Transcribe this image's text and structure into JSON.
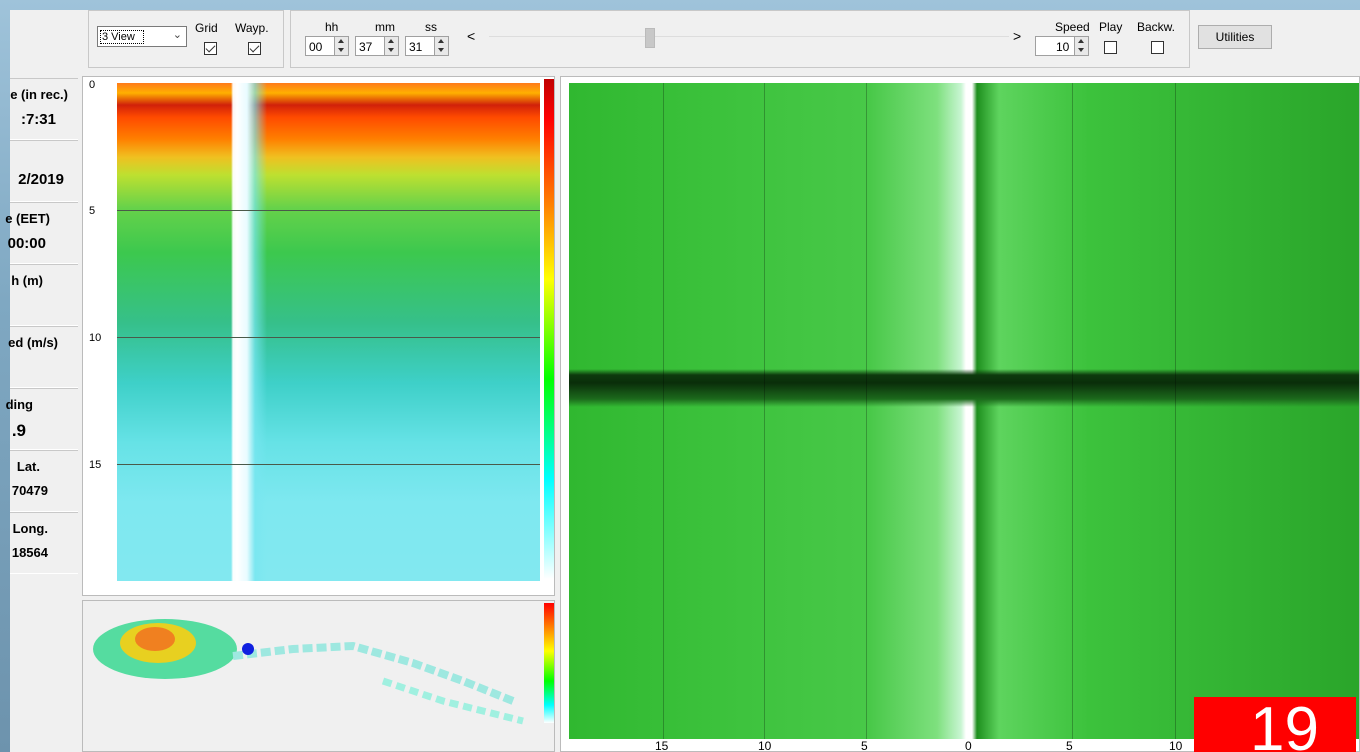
{
  "toolbar": {
    "view_select": "3 View",
    "grid_label": "Grid",
    "wayp_label": "Wayp.",
    "grid_checked": true,
    "wayp_checked": true,
    "hh_label": "hh",
    "mm_label": "mm",
    "ss_label": "ss",
    "hh_value": "00",
    "mm_value": "37",
    "ss_value": "31",
    "scroll_left": "<",
    "scroll_right": ">",
    "speed_label": "Speed",
    "speed_value": "10",
    "play_label": "Play",
    "backw_label": "Backw.",
    "utilities_label": "Utilities"
  },
  "info_panel": [
    {
      "title": "e (in rec.)",
      "value": ":7:31"
    },
    {
      "title": "",
      "value": "2/2019"
    },
    {
      "title": "e (EET)",
      "value": "00:00"
    },
    {
      "title": "h (m)",
      "value": ""
    },
    {
      "title": "ed (m/s)",
      "value": ""
    },
    {
      "title": "ding",
      "value": ".9"
    },
    {
      "title": "Lat.",
      "value": "70479"
    },
    {
      "title": "Long.",
      "value": "18564"
    }
  ],
  "sonar_view": {
    "depth_labels": [
      "0",
      "5",
      "10",
      "15"
    ]
  },
  "sidescan_view": {
    "range_labels": [
      "15",
      "10",
      "5",
      "0",
      "5",
      "10"
    ]
  },
  "overlay_badge": "19",
  "colors": {
    "accent_red": "#ff0000",
    "sidescan_green": "#3cc23c"
  }
}
